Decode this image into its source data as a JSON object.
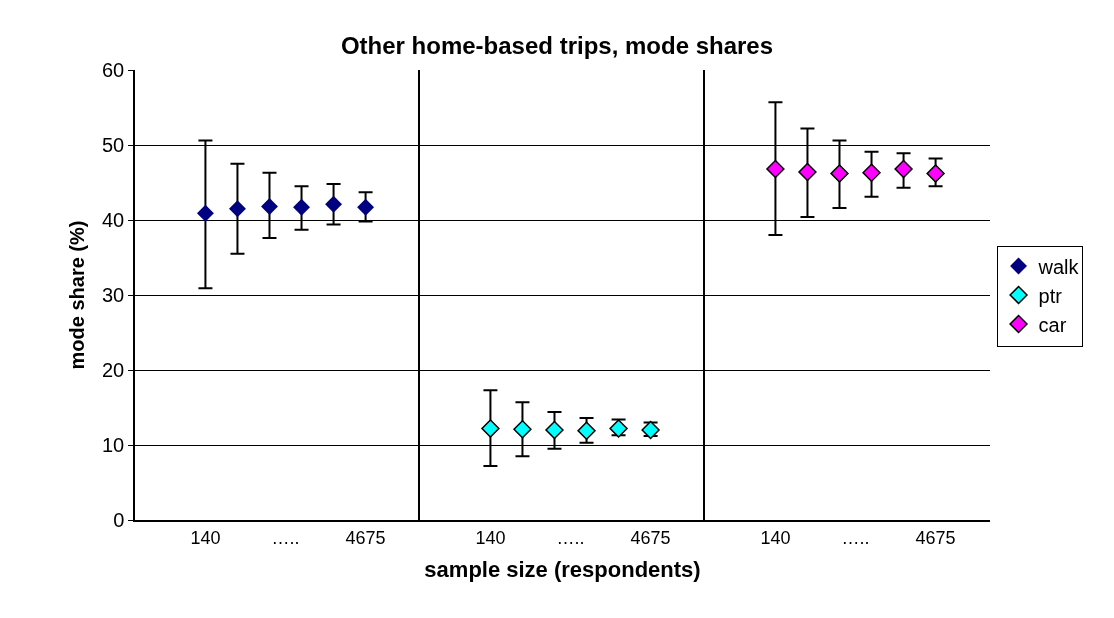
{
  "chart_data": [
    {
      "type": "scatter",
      "ylabel": "mode share (%)",
      "legend": "right",
      "categories": [
        null,
        null,
        null,
        "140",
        null,
        null,
        null,
        null,
        "…..",
        null,
        null,
        null,
        null,
        "4675",
        null,
        null
      ],
      "ylim": [
        0,
        60
      ],
      "yticks": [
        0,
        10,
        20,
        30,
        40,
        50,
        60
      ],
      "grid": "y",
      "marker": "diamond",
      "series": [
        {
          "name": "walk",
          "color": "#000080",
          "values": [
            null,
            null,
            null,
            40.9,
            null,
            41.5,
            null,
            41.8,
            null,
            41.7,
            null,
            42.1,
            null,
            41.7,
            null,
            null
          ],
          "errors": [
            null,
            null,
            null,
            [
              30.9,
              50.6
            ],
            null,
            [
              35.5,
              47.5
            ],
            null,
            [
              37.6,
              46.3
            ],
            null,
            [
              38.7,
              44.5
            ],
            null,
            [
              39.4,
              44.8
            ],
            null,
            [
              39.8,
              43.7
            ],
            null,
            null
          ]
        }
      ]
    },
    {
      "type": "scatter",
      "title": "Other home-based trips, mode shares",
      "xlabel": "sample size (respondents)",
      "legend": "right",
      "categories": [
        null,
        null,
        null,
        "140",
        null,
        null,
        null,
        null,
        "…..",
        null,
        null,
        null,
        null,
        "4675",
        null,
        null
      ],
      "ylim": [
        0,
        60
      ],
      "yticks": [
        0,
        10,
        20,
        30,
        40,
        50,
        60
      ],
      "grid": "y",
      "marker": "diamond",
      "tick_labels": "x",
      "series": [
        {
          "name": "ptr",
          "color": "#00ffff",
          "values": [
            null,
            null,
            null,
            12.2,
            null,
            12.1,
            null,
            12.0,
            null,
            11.9,
            null,
            12.2,
            null,
            12.0,
            null,
            null
          ],
          "errors": [
            null,
            null,
            null,
            [
              7.2,
              17.3
            ],
            null,
            [
              8.5,
              15.7
            ],
            null,
            [
              9.5,
              14.4
            ],
            null,
            [
              10.3,
              13.6
            ],
            null,
            [
              11.3,
              13.4
            ],
            null,
            [
              11.2,
              13.0
            ],
            null,
            null
          ]
        }
      ]
    },
    {
      "type": "scatter",
      "legend": "right",
      "categories": [
        null,
        null,
        null,
        "140",
        null,
        null,
        null,
        null,
        "…..",
        null,
        null,
        null,
        null,
        "4675",
        null,
        null
      ],
      "ylim": [
        0,
        60
      ],
      "yticks": [
        0,
        10,
        20,
        30,
        40,
        50,
        60
      ],
      "grid": "y",
      "marker": "diamond",
      "tick_labels": "x",
      "series": [
        {
          "name": "car",
          "color": "#ff00ff",
          "values": [
            null,
            null,
            null,
            46.8,
            null,
            46.4,
            null,
            46.2,
            null,
            46.3,
            null,
            46.8,
            null,
            46.2,
            null,
            null
          ],
          "errors": [
            null,
            null,
            null,
            [
              38.0,
              55.7
            ],
            null,
            [
              40.4,
              52.2
            ],
            null,
            [
              41.6,
              50.6
            ],
            null,
            [
              43.1,
              49.1
            ],
            null,
            [
              44.3,
              48.9
            ],
            null,
            [
              44.5,
              48.2
            ],
            null,
            null
          ]
        }
      ]
    }
  ]
}
